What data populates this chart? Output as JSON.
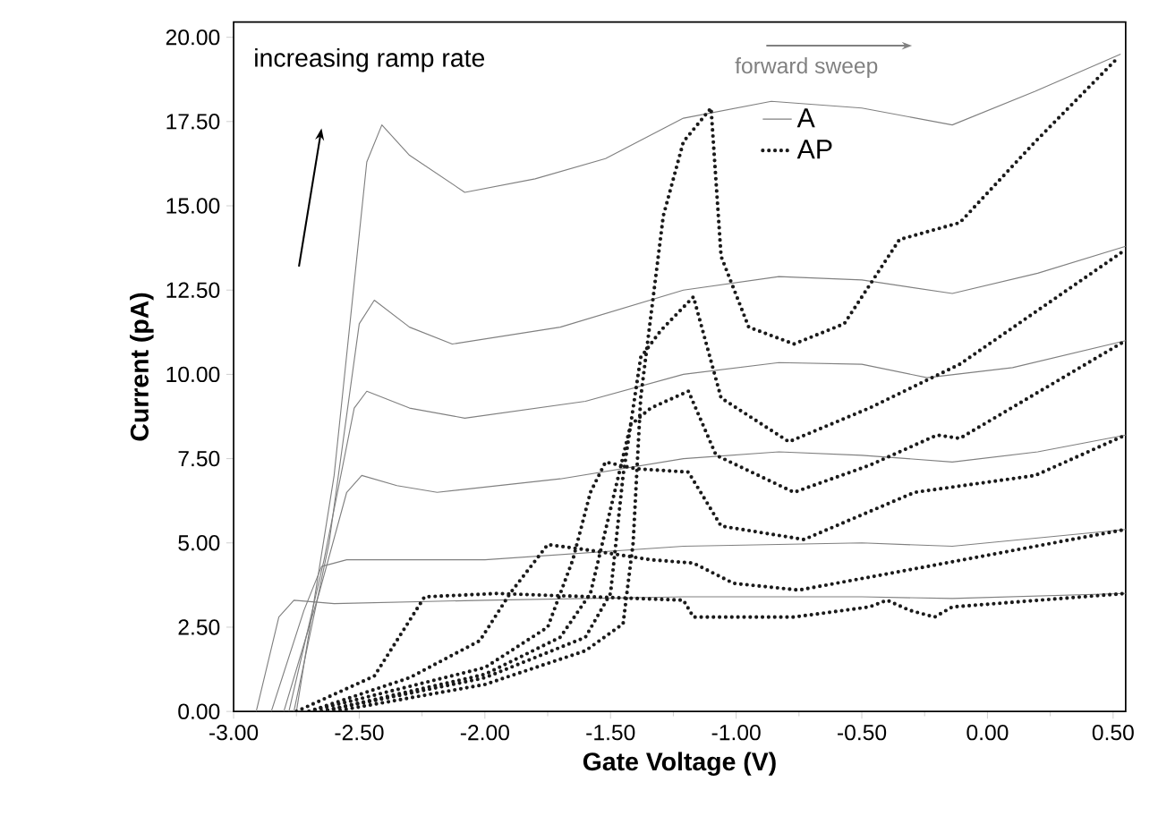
{
  "chart_data": {
    "type": "line",
    "xlabel": "Gate Voltage (V)",
    "ylabel": "Current (pA)",
    "xlim": [
      -3.0,
      0.55
    ],
    "ylim": [
      0,
      20.45
    ],
    "xticks": [
      {
        "value": -3.0,
        "label": "-3.00"
      },
      {
        "value": -2.5,
        "label": "-2.50"
      },
      {
        "value": -2.0,
        "label": "-2.00"
      },
      {
        "value": -1.5,
        "label": "-1.50"
      },
      {
        "value": -1.0,
        "label": "-1.00"
      },
      {
        "value": -0.5,
        "label": "-0.50"
      },
      {
        "value": 0,
        "label": "0.00"
      },
      {
        "value": 0.5,
        "label": "0.50"
      }
    ],
    "yticks": [
      {
        "value": 0,
        "label": "0.00"
      },
      {
        "value": 2.5,
        "label": "2.50"
      },
      {
        "value": 5,
        "label": "5.00"
      },
      {
        "value": 7.5,
        "label": "7.50"
      },
      {
        "value": 10,
        "label": "10.00"
      },
      {
        "value": 12.5,
        "label": "12.50"
      },
      {
        "value": 15,
        "label": "15.00"
      },
      {
        "value": 17.5,
        "label": "17.50"
      },
      {
        "value": 20,
        "label": "20.00"
      }
    ],
    "legend": "top",
    "annotations": [
      "increasing ramp rate",
      "forward sweep"
    ],
    "series": [
      {
        "name": "A",
        "color": "#808080",
        "line_style": "solid",
        "x": [
          -2.75,
          -2.6,
          -2.47,
          -2.41,
          -2.3,
          -2.08,
          -1.8,
          -1.52,
          -1.21,
          -0.86,
          -0.5,
          -0.14,
          0.19,
          0.53
        ],
        "values": [
          0,
          7,
          16.3,
          17.4,
          16.5,
          15.4,
          15.8,
          16.4,
          17.6,
          18.1,
          17.9,
          17.4,
          18.4,
          19.5
        ]
      },
      {
        "color": "#808080",
        "line_style": "solid",
        "x": [
          -2.76,
          -2.62,
          -2.5,
          -2.44,
          -2.3,
          -2.13,
          -1.7,
          -1.21,
          -0.83,
          -0.5,
          -0.14,
          0.2,
          0.55
        ],
        "values": [
          0,
          5,
          11.5,
          12.2,
          11.4,
          10.9,
          11.4,
          12.5,
          12.9,
          12.8,
          12.4,
          13.0,
          13.8
        ]
      },
      {
        "color": "#808080",
        "line_style": "solid",
        "x": [
          -2.78,
          -2.64,
          -2.52,
          -2.47,
          -2.3,
          -2.08,
          -1.6,
          -1.21,
          -0.83,
          -0.5,
          -0.24,
          0.1,
          0.55
        ],
        "values": [
          0,
          4.5,
          9.0,
          9.5,
          9.0,
          8.7,
          9.2,
          10.0,
          10.35,
          10.3,
          9.9,
          10.2,
          11.0
        ]
      },
      {
        "color": "#808080",
        "line_style": "solid",
        "x": [
          -2.8,
          -2.66,
          -2.55,
          -2.49,
          -2.35,
          -2.19,
          -1.7,
          -1.21,
          -0.83,
          -0.5,
          -0.14,
          0.2,
          0.55
        ],
        "values": [
          0,
          3.5,
          6.5,
          7.0,
          6.7,
          6.5,
          6.9,
          7.5,
          7.7,
          7.6,
          7.4,
          7.7,
          8.2
        ]
      },
      {
        "color": "#808080",
        "line_style": "solid",
        "x": [
          -2.85,
          -2.72,
          -2.65,
          -2.55,
          -2.0,
          -1.21,
          -0.5,
          -0.14,
          0.55
        ],
        "values": [
          0,
          3.0,
          4.3,
          4.5,
          4.5,
          4.9,
          5.0,
          4.9,
          5.4
        ]
      },
      {
        "color": "#808080",
        "line_style": "solid",
        "x": [
          -2.91,
          -2.82,
          -2.76,
          -2.6,
          -2.0,
          -1.21,
          -0.5,
          -0.14,
          0.55
        ],
        "values": [
          0,
          2.8,
          3.3,
          3.2,
          3.3,
          3.4,
          3.4,
          3.35,
          3.5
        ]
      },
      {
        "name": "AP",
        "color": "#1a1a1a",
        "line_style": "dotted",
        "x": [
          -2.6,
          -2.0,
          -1.6,
          -1.45,
          -1.41,
          -1.38,
          -1.29,
          -1.21,
          -1.1,
          -1.06,
          -0.95,
          -0.77,
          -0.57,
          -0.35,
          -0.11,
          0.19,
          0.52
        ],
        "values": [
          0,
          0.8,
          1.8,
          2.6,
          5.0,
          9.3,
          14.7,
          16.9,
          17.9,
          13.5,
          11.4,
          10.9,
          11.5,
          14.0,
          14.5,
          16.9,
          19.4
        ]
      },
      {
        "color": "#1a1a1a",
        "line_style": "dotted",
        "x": [
          -2.65,
          -2.0,
          -1.6,
          -1.5,
          -1.45,
          -1.38,
          -1.3,
          -1.17,
          -1.06,
          -0.79,
          -0.47,
          -0.11,
          0.55
        ],
        "values": [
          0,
          1.0,
          2.2,
          3.5,
          7.0,
          10.5,
          11.3,
          12.3,
          9.3,
          8.0,
          9.0,
          10.3,
          13.7
        ]
      },
      {
        "color": "#1a1a1a",
        "line_style": "dotted",
        "x": [
          -2.65,
          -2.0,
          -1.7,
          -1.58,
          -1.5,
          -1.42,
          -1.34,
          -1.19,
          -1.08,
          -0.77,
          -0.47,
          -0.2,
          -0.11,
          0.55
        ],
        "values": [
          0,
          1.1,
          2.2,
          3.5,
          6.0,
          8.5,
          9.0,
          9.5,
          7.6,
          6.5,
          7.3,
          8.2,
          8.1,
          11.0
        ]
      },
      {
        "color": "#1a1a1a",
        "line_style": "dotted",
        "x": [
          -2.7,
          -2.0,
          -1.75,
          -1.65,
          -1.58,
          -1.52,
          -1.4,
          -1.19,
          -1.06,
          -0.73,
          -0.29,
          0.19,
          0.55
        ],
        "values": [
          0,
          1.3,
          2.5,
          4.5,
          6.5,
          7.4,
          7.2,
          7.1,
          5.5,
          5.1,
          6.5,
          7.0,
          8.2
        ]
      },
      {
        "color": "#1a1a1a",
        "line_style": "dotted",
        "x": [
          -2.7,
          -2.3,
          -2.02,
          -1.9,
          -1.75,
          -1.6,
          -1.34,
          -1.17,
          -1.01,
          -0.75,
          -0.24,
          0.55
        ],
        "values": [
          0,
          1.0,
          2.1,
          3.5,
          4.95,
          4.8,
          4.5,
          4.4,
          3.8,
          3.6,
          4.3,
          5.4
        ]
      },
      {
        "color": "#1a1a1a",
        "line_style": "dotted",
        "x": [
          -2.75,
          -2.44,
          -2.24,
          -1.95,
          -1.21,
          -1.17,
          -0.77,
          -0.47,
          -0.4,
          -0.31,
          -0.21,
          -0.14,
          0.55
        ],
        "values": [
          0,
          1.05,
          3.4,
          3.5,
          3.3,
          2.8,
          2.8,
          3.1,
          3.3,
          3.0,
          2.8,
          3.1,
          3.5
        ]
      }
    ]
  }
}
